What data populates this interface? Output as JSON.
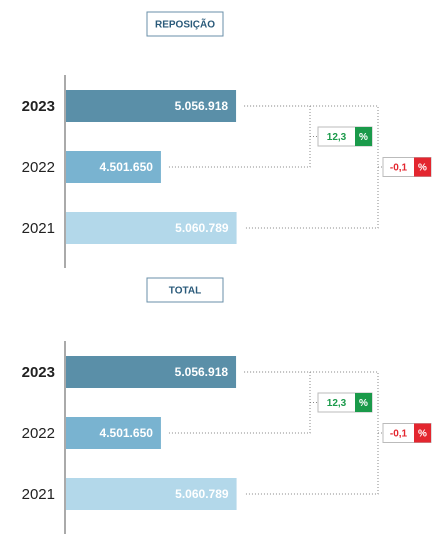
{
  "chart_data": [
    {
      "type": "bar",
      "orientation": "horizontal",
      "title": "REPOSIÇÃO",
      "categories": [
        "2023",
        "2022",
        "2021"
      ],
      "values": [
        5056918,
        4501650,
        5060789
      ],
      "value_labels": [
        "5.056.918",
        "4.501.650",
        "5.060.789"
      ],
      "colors": [
        "#5a8fa8",
        "#79b3d0",
        "#b3d8ea"
      ],
      "xlim": [
        3800000,
        5500000
      ],
      "annotations": [
        {
          "value": 12.3,
          "label": "12,3",
          "unit": "%",
          "color": "#1a9a4a"
        },
        {
          "value": -0.1,
          "label": "-0,1",
          "unit": "%",
          "color": "#e3262f"
        }
      ]
    },
    {
      "type": "bar",
      "orientation": "horizontal",
      "title": "TOTAL",
      "categories": [
        "2023",
        "2022",
        "2021"
      ],
      "values": [
        5056918,
        4501650,
        5060789
      ],
      "value_labels": [
        "5.056.918",
        "4.501.650",
        "5.060.789"
      ],
      "colors": [
        "#5a8fa8",
        "#79b3d0",
        "#b3d8ea"
      ],
      "xlim": [
        3800000,
        5500000
      ],
      "annotations": [
        {
          "value": 12.3,
          "label": "12,3",
          "unit": "%",
          "color": "#1a9a4a"
        },
        {
          "value": -0.1,
          "label": "-0,1",
          "unit": "%",
          "color": "#e3262f"
        }
      ]
    }
  ]
}
